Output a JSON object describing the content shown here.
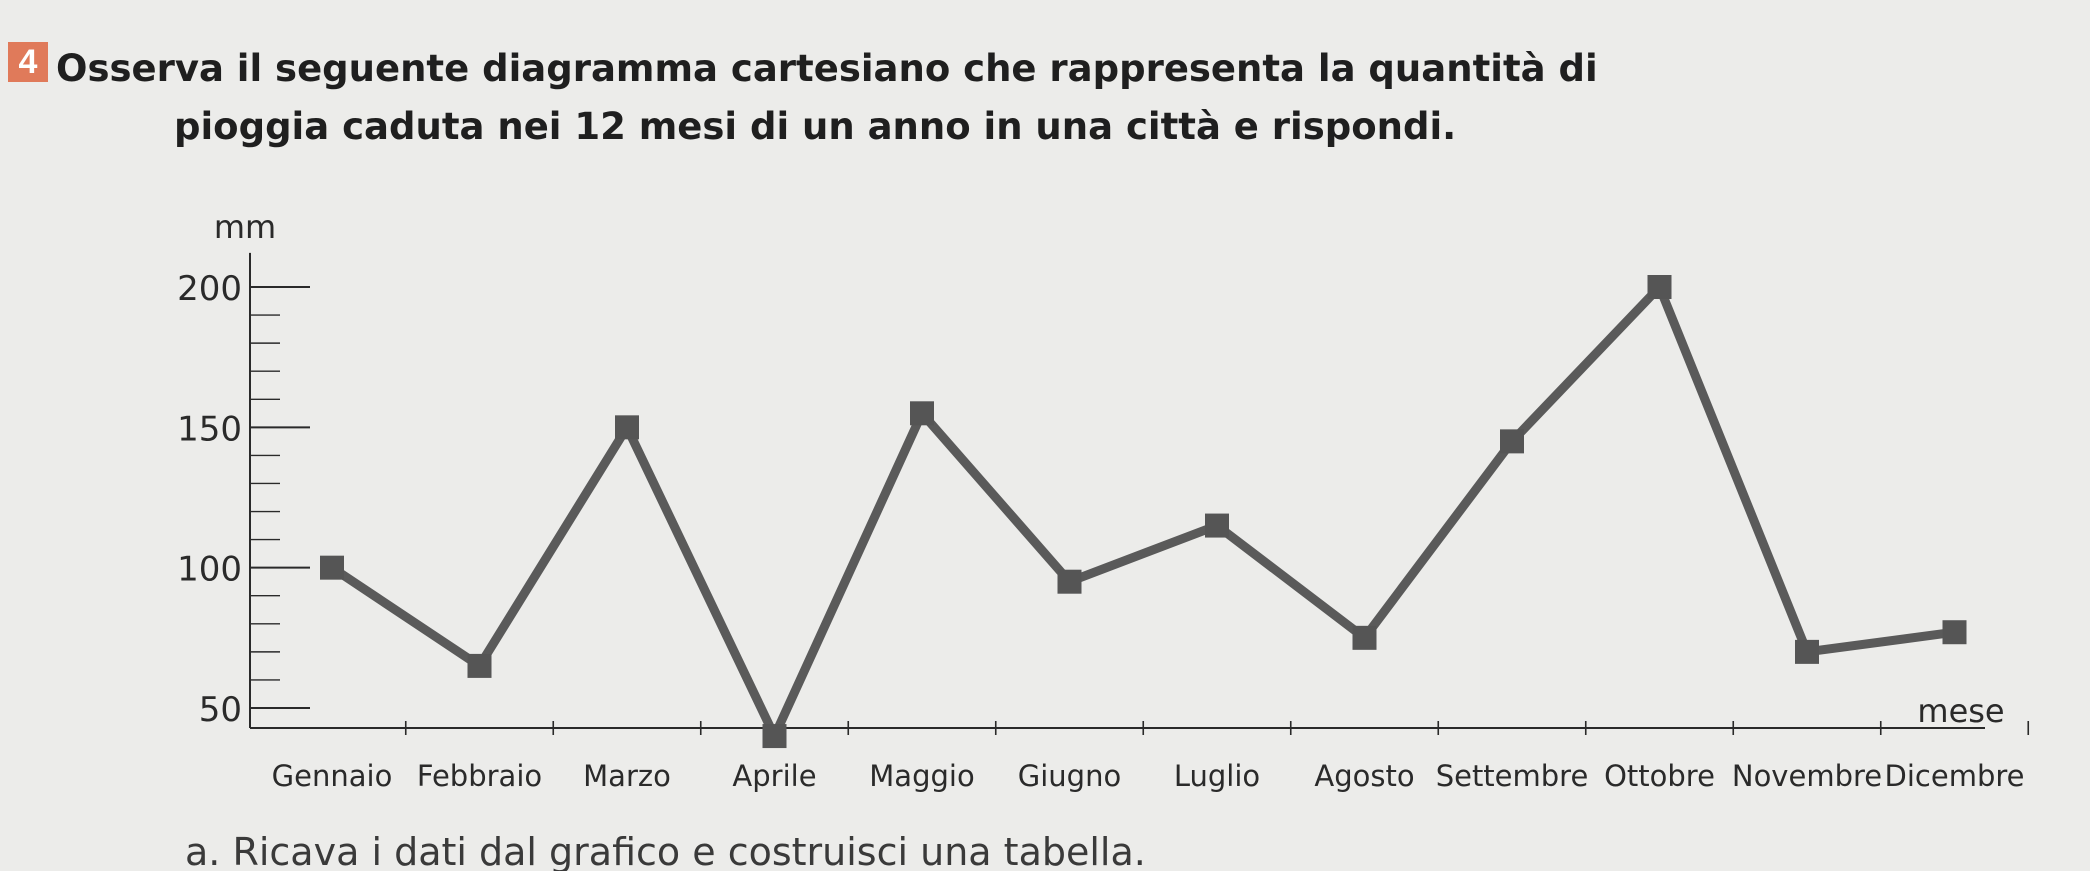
{
  "exercise": {
    "number": "4",
    "question_line1": "Osserva il seguente diagramma cartesiano che rappresenta la quantità di",
    "question_line2": "pioggia caduta nei 12 mesi di un anno in una città e rispondi."
  },
  "footer": {
    "text": "a. Ricava i dati dal grafico e costruisci una tabella."
  },
  "chart_data": {
    "type": "line",
    "xlabel": "mese",
    "ylabel": "mm",
    "categories": [
      "Gennaio",
      "Febbraio",
      "Marzo",
      "Aprile",
      "Maggio",
      "Giugno",
      "Luglio",
      "Agosto",
      "Settembre",
      "Ottobre",
      "Novembre",
      "Dicembre"
    ],
    "series": [
      {
        "values": [
          100,
          65,
          150,
          40,
          155,
          95,
          115,
          75,
          145,
          200,
          70,
          77
        ]
      }
    ],
    "yticks": [
      50,
      100,
      150,
      200
    ],
    "ylim": [
      45,
      210
    ],
    "minor_tick_step": 10,
    "grid": false,
    "legend": "none",
    "line_color": "#5a5a5a",
    "marker_color": "#555555",
    "axis_color": "#2a2a2a"
  }
}
